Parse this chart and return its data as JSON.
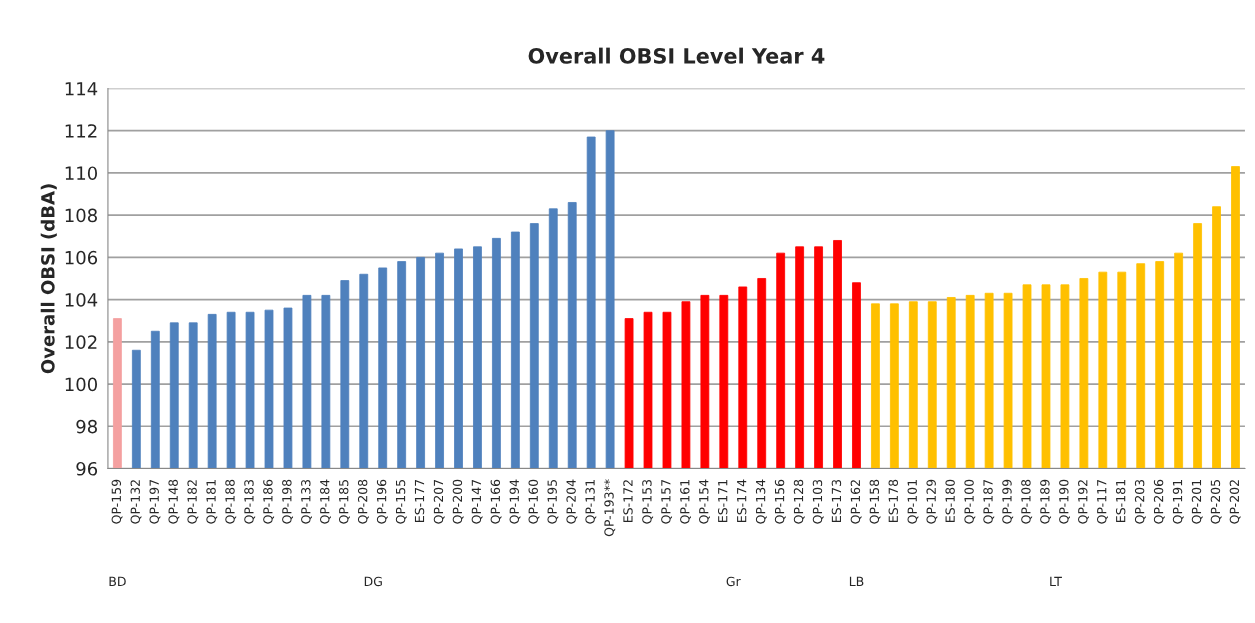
{
  "chart_data": {
    "type": "bar",
    "title": "Overall OBSI Level Year 4",
    "ylabel": "Overall OBSI (dBA)",
    "categories": [
      "QP-159",
      "QP-132",
      "QP-197",
      "QP-148",
      "QP-182",
      "QP-181",
      "QP-188",
      "QP-183",
      "QP-186",
      "QP-198",
      "QP-133",
      "QP-184",
      "QP-185",
      "QP-208",
      "QP-196",
      "QP-155",
      "ES-177",
      "QP-207",
      "QP-200",
      "QP-147",
      "QP-166",
      "QP-194",
      "QP-160",
      "QP-195",
      "QP-204",
      "QP-131",
      "QP-193**",
      "ES-172",
      "QP-153",
      "QP-157",
      "QP-161",
      "QP-154",
      "ES-171",
      "ES-174",
      "QP-134",
      "QP-156",
      "QP-128",
      "QP-103",
      "ES-173",
      "QP-162",
      "QP-158",
      "ES-178",
      "QP-101",
      "QP-129",
      "ES-180",
      "QP-100",
      "QP-187",
      "QP-199",
      "QP-108",
      "QP-189",
      "QP-190",
      "QP-192",
      "QP-117",
      "ES-181",
      "QP-203",
      "QP-206",
      "QP-191",
      "QP-201",
      "QP-205",
      "QP-202"
    ],
    "series": [
      {
        "name": "BD",
        "color": "#f4a0a0",
        "values": [
          103.1,
          null,
          null,
          null,
          null,
          null,
          null,
          null,
          null,
          null,
          null,
          null,
          null,
          null,
          null,
          null,
          null,
          null,
          null,
          null,
          null,
          null,
          null,
          null,
          null,
          null,
          null,
          null,
          null,
          null,
          null,
          null,
          null,
          null,
          null,
          null,
          null,
          null,
          null,
          null,
          null,
          null,
          null,
          null,
          null,
          null,
          null,
          null,
          null,
          null,
          null,
          null,
          null,
          null,
          null,
          null,
          null,
          null,
          null,
          null
        ]
      },
      {
        "name": "DG",
        "color": "#4f81bd",
        "values": [
          null,
          101.6,
          102.5,
          102.9,
          102.9,
          103.3,
          103.4,
          103.4,
          103.5,
          103.6,
          104.2,
          104.2,
          104.9,
          105.2,
          105.5,
          105.8,
          106.0,
          106.2,
          106.4,
          106.5,
          106.9,
          107.2,
          107.6,
          108.3,
          108.6,
          111.7,
          112.0,
          null,
          null,
          null,
          null,
          null,
          null,
          null,
          null,
          null,
          null,
          null,
          null,
          null,
          null,
          null,
          null,
          null,
          null,
          null,
          null,
          null,
          null,
          null,
          null,
          null,
          null,
          null,
          null,
          null,
          null,
          null,
          null,
          null
        ]
      },
      {
        "name": "Gr",
        "color": "#ff0000",
        "values": [
          null,
          null,
          null,
          null,
          null,
          null,
          null,
          null,
          null,
          null,
          null,
          null,
          null,
          null,
          null,
          null,
          null,
          null,
          null,
          null,
          null,
          null,
          null,
          null,
          null,
          null,
          null,
          103.1,
          103.4,
          103.4,
          103.9,
          104.2,
          104.2,
          104.6,
          105.0,
          106.2,
          106.5,
          106.5,
          106.8,
          null,
          null,
          null,
          null,
          null,
          null,
          null,
          null,
          null,
          null,
          null,
          null,
          null,
          null,
          null,
          null,
          null,
          null,
          null,
          null,
          null
        ]
      },
      {
        "name": "LB",
        "color": "#ff0000",
        "values": [
          null,
          null,
          null,
          null,
          null,
          null,
          null,
          null,
          null,
          null,
          null,
          null,
          null,
          null,
          null,
          null,
          null,
          null,
          null,
          null,
          null,
          null,
          null,
          null,
          null,
          null,
          null,
          null,
          null,
          null,
          null,
          null,
          null,
          null,
          null,
          null,
          null,
          null,
          null,
          104.8,
          null,
          null,
          null,
          null,
          null,
          null,
          null,
          null,
          null,
          null,
          null,
          null,
          null,
          null,
          null,
          null,
          null,
          null,
          null,
          null
        ]
      },
      {
        "name": "LT",
        "color": "#ffc000",
        "values": [
          null,
          null,
          null,
          null,
          null,
          null,
          null,
          null,
          null,
          null,
          null,
          null,
          null,
          null,
          null,
          null,
          null,
          null,
          null,
          null,
          null,
          null,
          null,
          null,
          null,
          null,
          null,
          null,
          null,
          null,
          null,
          null,
          null,
          null,
          null,
          null,
          null,
          null,
          null,
          null,
          103.8,
          103.8,
          103.9,
          103.9,
          104.1,
          104.2,
          104.3,
          104.3,
          104.7,
          104.7,
          104.7,
          105.0,
          105.3,
          105.3,
          105.7,
          105.8,
          106.2,
          107.6,
          108.4,
          110.3
        ]
      }
    ],
    "ylim": [
      96,
      114
    ],
    "yticks": [
      96,
      98,
      100,
      102,
      104,
      106,
      108,
      110,
      112,
      114
    ],
    "grid": "y",
    "legend": false
  }
}
